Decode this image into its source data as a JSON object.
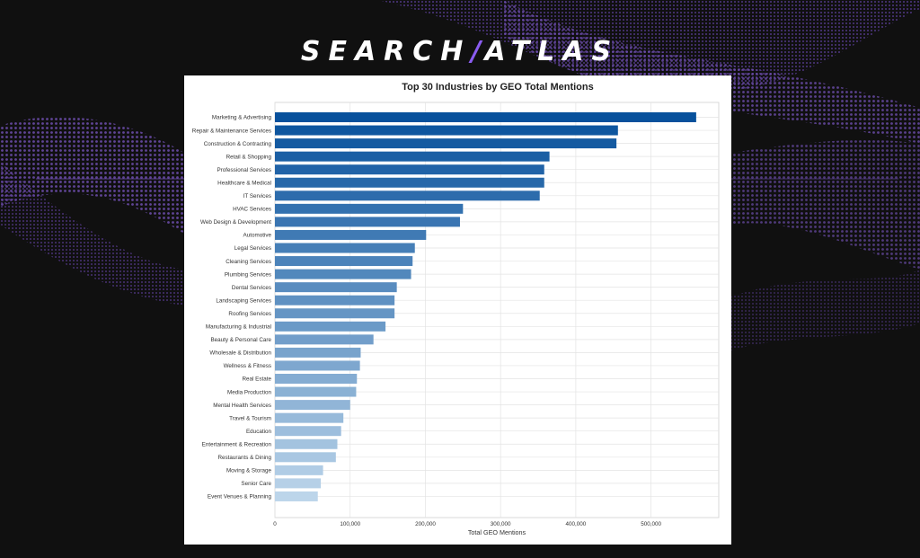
{
  "brand": {
    "left": "SEARCH",
    "slash": "/",
    "right": "ATLAS"
  },
  "colors": {
    "background": "#101010",
    "swirl": "#6a4aa8",
    "bar_dark": "#08519c",
    "bar_light": "#bcd5ea"
  },
  "chart_data": {
    "type": "bar",
    "orientation": "horizontal",
    "title": "Top 30 Industries by GEO Total Mentions",
    "xlabel": "Total GEO Mentions",
    "ylabel": "",
    "xlim": [
      0,
      590000
    ],
    "xticks": [
      0,
      100000,
      200000,
      300000,
      400000,
      500000
    ],
    "xtick_labels": [
      "0",
      "100,000",
      "200,000",
      "300,000",
      "400,000",
      "500,000"
    ],
    "grid": true,
    "categories": [
      "Marketing & Advertising",
      "Repair & Maintenance Services",
      "Construction & Contracting",
      "Retail & Shopping",
      "Professional Services",
      "Healthcare & Medical",
      "IT Services",
      "HVAC Services",
      "Web Design & Development",
      "Automotive",
      "Legal Services",
      "Cleaning Services",
      "Plumbing Services",
      "Dental Services",
      "Landscaping Services",
      "Roofing Services",
      "Manufacturing & Industrial",
      "Beauty & Personal Care",
      "Wholesale & Distribution",
      "Wellness & Fitness",
      "Real Estate",
      "Media Production",
      "Mental Health Services",
      "Travel & Tourism",
      "Education",
      "Entertainment & Recreation",
      "Restaurants & Dining",
      "Moving & Storage",
      "Senior Care",
      "Event Venues & Planning"
    ],
    "values": [
      560000,
      456000,
      454000,
      365000,
      358000,
      358000,
      352000,
      250000,
      246000,
      201000,
      186000,
      183000,
      181000,
      162000,
      159000,
      159000,
      147000,
      131000,
      114000,
      113000,
      109000,
      108000,
      100000,
      91000,
      88000,
      83000,
      81000,
      64000,
      61000,
      57000
    ]
  }
}
